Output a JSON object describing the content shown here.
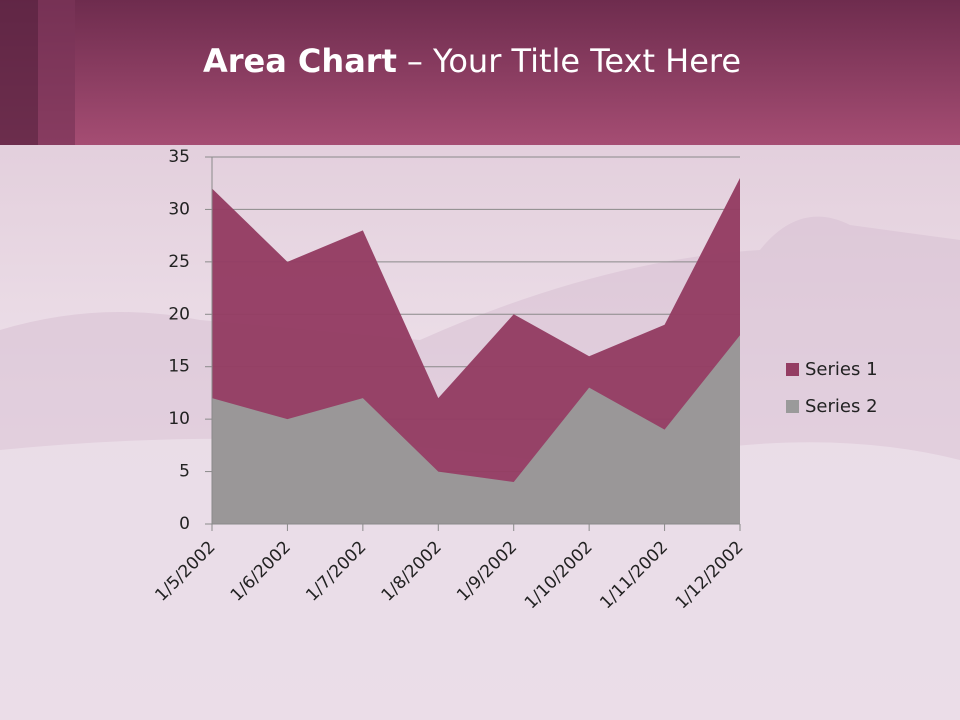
{
  "slide": {
    "title_bold": "Area Chart",
    "title_rest": "– Your Title Text Here"
  },
  "chart_data": {
    "type": "area",
    "categories": [
      "1/5/2002",
      "1/6/2002",
      "1/7/2002",
      "1/8/2002",
      "1/9/2002",
      "1/10/2002",
      "1/11/2002",
      "1/12/2002"
    ],
    "series": [
      {
        "name": "Series 1",
        "color": "#943d63",
        "values": [
          32,
          25,
          28,
          12,
          20,
          16,
          19,
          33
        ]
      },
      {
        "name": "Series 2",
        "color": "#9a9a9a",
        "values": [
          12,
          10,
          12,
          5,
          4,
          13,
          9,
          18
        ]
      }
    ],
    "ylim": [
      0,
      35
    ],
    "yticks": [
      0,
      5,
      10,
      15,
      20,
      25,
      30,
      35
    ],
    "grid": true,
    "legend": "right"
  }
}
